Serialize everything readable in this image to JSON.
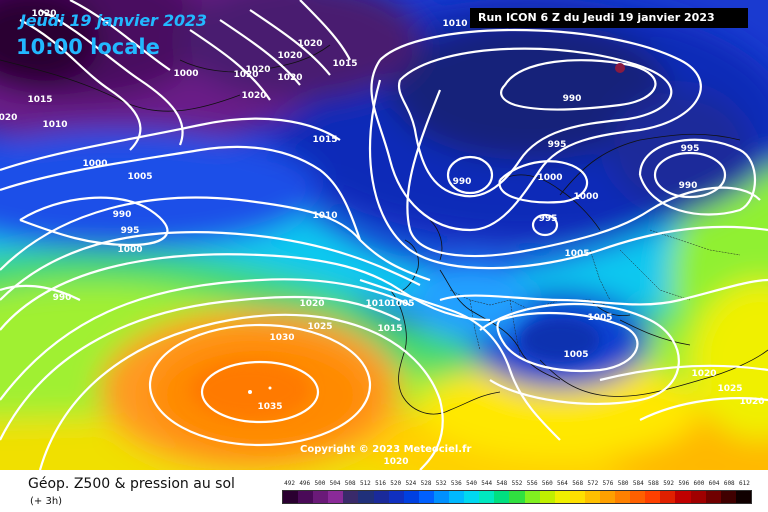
{
  "header": {
    "date": "Jeudi 19 janvier 2023",
    "time": "10:00 locale",
    "run": "Run ICON 6 Z du Jeudi 19 janvier 2023"
  },
  "copyright": "Copyright © 2023 Meteociel.fr",
  "footer": {
    "title": "Géop. Z500 & pression au sol",
    "subtitle": "(+ 3h)"
  },
  "scale": {
    "labels": [
      "492",
      "496",
      "500",
      "504",
      "508",
      "512",
      "516",
      "520",
      "524",
      "528",
      "532",
      "536",
      "540",
      "544",
      "548",
      "552",
      "556",
      "560",
      "564",
      "568",
      "572",
      "576",
      "580",
      "584",
      "588",
      "592",
      "596",
      "600",
      "604",
      "608",
      "612"
    ],
    "colors": [
      "#2a0030",
      "#4a0a58",
      "#6a1a78",
      "#8a2a98",
      "#3a2a6a",
      "#20307a",
      "#1a2a9a",
      "#1030c0",
      "#0040e0",
      "#0060ff",
      "#0090ff",
      "#00b8ff",
      "#00d8f0",
      "#00e8c0",
      "#00e080",
      "#30e040",
      "#80f020",
      "#c0f000",
      "#f0f000",
      "#ffe000",
      "#ffc000",
      "#ffa000",
      "#ff8000",
      "#ff6000",
      "#ff4000",
      "#e02000",
      "#c00000",
      "#a00000",
      "#700000",
      "#400000",
      "#100000"
    ]
  },
  "map": {
    "isobar_labels": [
      "1010",
      "1020",
      "1015",
      "1020",
      "1020",
      "1020",
      "1000",
      "1020",
      "1015",
      "1010",
      "1015",
      "1000",
      "1005",
      "990",
      "995",
      "1000",
      "1010",
      "990",
      "1020",
      "1025",
      "1030",
      "1035",
      "1010",
      "1005",
      "1015",
      "1020",
      "1010",
      "990",
      "995",
      "990",
      "1000",
      "995",
      "1000",
      "1005",
      "995",
      "990",
      "1005",
      "1005",
      "1020",
      "1025",
      "1020",
      "020",
      "1020",
      "1020"
    ]
  }
}
